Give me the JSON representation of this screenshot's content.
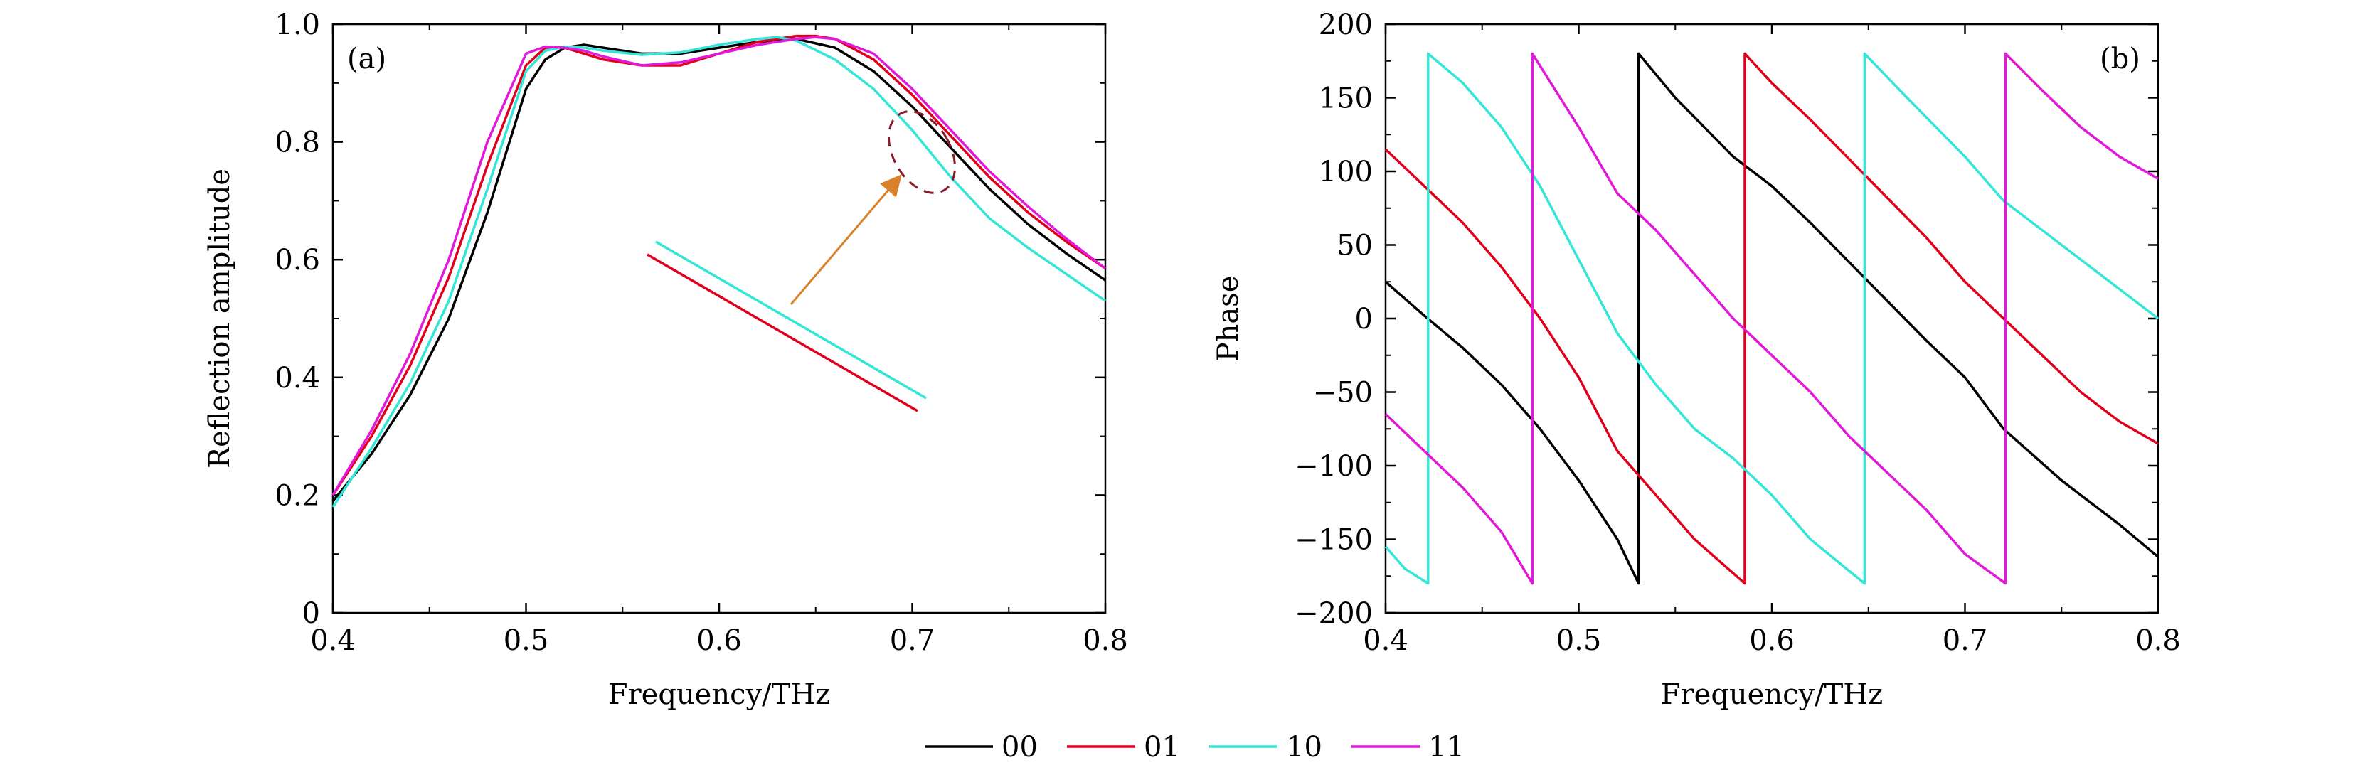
{
  "colors": {
    "00": "#000000",
    "01": "#e0001b",
    "10": "#33e6d8",
    "11": "#e01ad8",
    "arrow": "#d9822b",
    "ellipse": "#8b1a2b"
  },
  "legend": [
    "00",
    "01",
    "10",
    "11"
  ],
  "chart_data": [
    {
      "type": "line",
      "panel": "(a)",
      "xlabel": "Frequency/THz",
      "ylabel": "Reflection amplitude",
      "xlim": [
        0.4,
        0.8
      ],
      "ylim": [
        0,
        1.0
      ],
      "xticks": [
        "0.4",
        "0.5",
        "0.6",
        "0.7",
        "0.8"
      ],
      "yticks": [
        "0",
        "0.2",
        "0.4",
        "0.6",
        "0.8",
        "1.0"
      ],
      "series": [
        {
          "name": "00",
          "x": [
            0.4,
            0.42,
            0.44,
            0.46,
            0.48,
            0.5,
            0.51,
            0.52,
            0.53,
            0.54,
            0.56,
            0.58,
            0.6,
            0.62,
            0.64,
            0.66,
            0.68,
            0.7,
            0.72,
            0.74,
            0.76,
            0.78,
            0.8
          ],
          "y": [
            0.19,
            0.27,
            0.37,
            0.5,
            0.68,
            0.89,
            0.94,
            0.96,
            0.965,
            0.96,
            0.95,
            0.95,
            0.96,
            0.97,
            0.975,
            0.96,
            0.92,
            0.86,
            0.79,
            0.72,
            0.66,
            0.61,
            0.565
          ]
        },
        {
          "name": "01",
          "x": [
            0.4,
            0.42,
            0.44,
            0.46,
            0.48,
            0.5,
            0.51,
            0.52,
            0.54,
            0.56,
            0.58,
            0.6,
            0.62,
            0.64,
            0.65,
            0.66,
            0.68,
            0.7,
            0.72,
            0.74,
            0.76,
            0.78,
            0.8
          ],
          "y": [
            0.2,
            0.3,
            0.42,
            0.57,
            0.76,
            0.93,
            0.96,
            0.96,
            0.94,
            0.93,
            0.93,
            0.95,
            0.97,
            0.98,
            0.98,
            0.975,
            0.94,
            0.88,
            0.81,
            0.74,
            0.68,
            0.63,
            0.585
          ]
        },
        {
          "name": "10",
          "x": [
            0.4,
            0.42,
            0.44,
            0.46,
            0.48,
            0.5,
            0.51,
            0.52,
            0.53,
            0.54,
            0.56,
            0.58,
            0.6,
            0.62,
            0.63,
            0.64,
            0.66,
            0.68,
            0.7,
            0.72,
            0.74,
            0.76,
            0.78,
            0.8
          ],
          "y": [
            0.18,
            0.28,
            0.39,
            0.53,
            0.72,
            0.92,
            0.955,
            0.962,
            0.96,
            0.955,
            0.948,
            0.952,
            0.965,
            0.975,
            0.978,
            0.972,
            0.94,
            0.89,
            0.82,
            0.74,
            0.67,
            0.62,
            0.575,
            0.53
          ]
        },
        {
          "name": "11",
          "x": [
            0.4,
            0.42,
            0.44,
            0.46,
            0.48,
            0.5,
            0.51,
            0.52,
            0.53,
            0.54,
            0.56,
            0.58,
            0.6,
            0.62,
            0.64,
            0.65,
            0.66,
            0.68,
            0.7,
            0.72,
            0.74,
            0.76,
            0.78,
            0.8
          ],
          "y": [
            0.2,
            0.31,
            0.44,
            0.6,
            0.8,
            0.95,
            0.962,
            0.96,
            0.955,
            0.945,
            0.93,
            0.935,
            0.95,
            0.965,
            0.975,
            0.978,
            0.975,
            0.95,
            0.89,
            0.82,
            0.75,
            0.69,
            0.635,
            0.585
          ]
        }
      ],
      "inset_zoom": {
        "x_range": [
          0.69,
          0.72
        ],
        "series": [
          "01",
          "10"
        ]
      }
    },
    {
      "type": "line",
      "panel": "(b)",
      "xlabel": "Frequency/THz",
      "ylabel": "Phase",
      "xlim": [
        0.4,
        0.8
      ],
      "ylim": [
        -200,
        200
      ],
      "xticks": [
        "0.4",
        "0.5",
        "0.6",
        "0.7",
        "0.8"
      ],
      "yticks": [
        "200",
        "150",
        "100",
        "50",
        "0",
        "−50",
        "−100",
        "−150",
        "−200"
      ],
      "series": [
        {
          "name": "00",
          "segments": [
            {
              "x": [
                0.4,
                0.42,
                0.44,
                0.46,
                0.48,
                0.5,
                0.52,
                0.531
              ],
              "y": [
                25,
                2,
                -20,
                -45,
                -75,
                -110,
                -150,
                -180
              ]
            },
            {
              "x": [
                0.531,
                0.55,
                0.58,
                0.6,
                0.62,
                0.65,
                0.68,
                0.7,
                0.72,
                0.75,
                0.78,
                0.8
              ],
              "y": [
                180,
                150,
                110,
                90,
                65,
                25,
                -15,
                -40,
                -75,
                -110,
                -140,
                -162
              ]
            }
          ]
        },
        {
          "name": "01",
          "segments": [
            {
              "x": [
                0.4,
                0.42,
                0.44,
                0.46,
                0.48,
                0.5,
                0.52,
                0.54,
                0.56,
                0.586
              ],
              "y": [
                115,
                90,
                65,
                35,
                0,
                -40,
                -90,
                -120,
                -150,
                -180
              ]
            },
            {
              "x": [
                0.586,
                0.6,
                0.62,
                0.65,
                0.68,
                0.7,
                0.72,
                0.74,
                0.76,
                0.78,
                0.8
              ],
              "y": [
                180,
                160,
                135,
                95,
                55,
                25,
                0,
                -25,
                -50,
                -70,
                -85
              ]
            }
          ]
        },
        {
          "name": "10",
          "segments": [
            {
              "x": [
                0.4,
                0.41,
                0.422
              ],
              "y": [
                -155,
                -170,
                -180
              ]
            },
            {
              "x": [
                0.422,
                0.44,
                0.46,
                0.48,
                0.5,
                0.52,
                0.54,
                0.56,
                0.58,
                0.6,
                0.62,
                0.648
              ],
              "y": [
                180,
                160,
                130,
                90,
                40,
                -10,
                -45,
                -75,
                -95,
                -120,
                -150,
                -180
              ]
            },
            {
              "x": [
                0.648,
                0.67,
                0.7,
                0.72,
                0.75,
                0.78,
                0.8
              ],
              "y": [
                180,
                150,
                110,
                80,
                50,
                20,
                0
              ]
            }
          ]
        },
        {
          "name": "11",
          "segments": [
            {
              "x": [
                0.4,
                0.42,
                0.44,
                0.46,
                0.476
              ],
              "y": [
                -65,
                -90,
                -115,
                -145,
                -180
              ]
            },
            {
              "x": [
                0.476,
                0.5,
                0.52,
                0.54,
                0.56,
                0.58,
                0.6,
                0.62,
                0.64,
                0.66,
                0.68,
                0.7,
                0.721
              ],
              "y": [
                180,
                130,
                85,
                60,
                30,
                0,
                -25,
                -50,
                -80,
                -105,
                -130,
                -160,
                -180
              ]
            },
            {
              "x": [
                0.721,
                0.74,
                0.76,
                0.78,
                0.8
              ],
              "y": [
                180,
                155,
                130,
                110,
                95
              ]
            }
          ]
        }
      ]
    }
  ]
}
